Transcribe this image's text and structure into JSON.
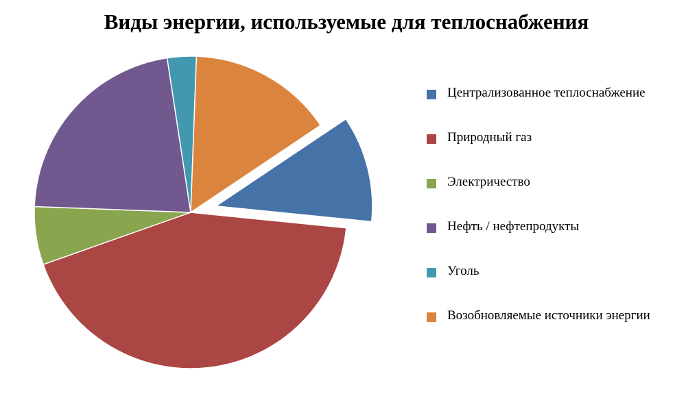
{
  "chart_data": {
    "type": "pie",
    "title": "Виды энергии, используемые для теплоснабжения",
    "legend_position": "right",
    "exploded_slice": "Централизованное теплоснабжение",
    "slices": [
      {
        "label": "Централизованное теплоснабжение",
        "value": 11,
        "color": "#4572A7"
      },
      {
        "label": "Природный газ",
        "value": 43,
        "color": "#AA4643"
      },
      {
        "label": "Электричество",
        "value": 6,
        "color": "#89A54E"
      },
      {
        "label": "Нефть / нефтепродукты",
        "value": 22,
        "color": "#71588F"
      },
      {
        "label": "Уголь",
        "value": 3,
        "color": "#4198AF"
      },
      {
        "label": "Возобновляемые источники энергии",
        "value": 15,
        "color": "#DB843D"
      }
    ]
  }
}
